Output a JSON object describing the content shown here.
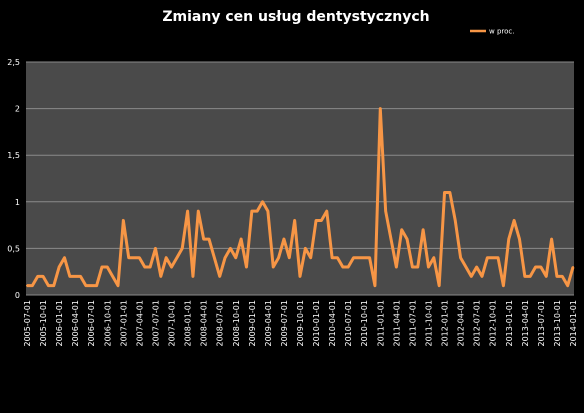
{
  "chart_data": {
    "type": "line",
    "title": "Zmiany cen usług dentystycznych",
    "xlabel": "",
    "ylabel": "",
    "ylim": [
      0,
      2.5
    ],
    "yticks": [
      "0",
      "0,5",
      "1",
      "1,5",
      "2",
      "2,5"
    ],
    "grid": "horizontal",
    "legend_position": "top-right",
    "colors": {
      "background": "#000000",
      "plot_area": "#4a4a4a",
      "gridline": "#8a8a8a",
      "series": "#f79646",
      "text": "#ffffff"
    },
    "x_tick_labels": [
      "2005-07-01",
      "2005-10-01",
      "2006-01-01",
      "2006-04-01",
      "2006-07-01",
      "2006-10-01",
      "2007-01-01",
      "2007-04-01",
      "2007-07-01",
      "2007-10-01",
      "2008-01-01",
      "2008-04-01",
      "2008-07-01",
      "2008-10-01",
      "2009-01-01",
      "2009-04-01",
      "2009-07-01",
      "2009-10-01",
      "2010-01-01",
      "2010-04-01",
      "2010-07-01",
      "2010-10-01",
      "2011-01-01",
      "2011-04-01",
      "2011-07-01",
      "2011-10-01",
      "2012-01-01",
      "2012-04-01",
      "2012-07-01",
      "2012-10-01",
      "2013-01-01",
      "2013-04-01",
      "2013-07-01",
      "2013-10-01",
      "2014-01-01"
    ],
    "series": [
      {
        "name": "w proc.",
        "values": [
          0.1,
          0.1,
          0.2,
          0.2,
          0.1,
          0.1,
          0.3,
          0.4,
          0.2,
          0.2,
          0.2,
          0.1,
          0.1,
          0.1,
          0.3,
          0.3,
          0.2,
          0.1,
          0.8,
          0.4,
          0.4,
          0.4,
          0.3,
          0.3,
          0.5,
          0.2,
          0.4,
          0.3,
          0.4,
          0.5,
          0.9,
          0.2,
          0.9,
          0.6,
          0.6,
          0.4,
          0.2,
          0.4,
          0.5,
          0.4,
          0.6,
          0.3,
          0.9,
          0.9,
          1.0,
          0.9,
          0.3,
          0.4,
          0.6,
          0.4,
          0.8,
          0.2,
          0.5,
          0.4,
          0.8,
          0.8,
          0.9,
          0.4,
          0.4,
          0.3,
          0.3,
          0.4,
          0.4,
          0.4,
          0.4,
          0.1,
          2.0,
          0.9,
          0.6,
          0.3,
          0.7,
          0.6,
          0.3,
          0.3,
          0.7,
          0.3,
          0.4,
          0.1,
          1.1,
          1.1,
          0.8,
          0.4,
          0.3,
          0.2,
          0.3,
          0.2,
          0.4,
          0.4,
          0.4,
          0.1,
          0.6,
          0.8,
          0.6,
          0.2,
          0.2,
          0.3,
          0.3,
          0.2,
          0.6,
          0.2,
          0.2,
          0.1,
          0.3
        ]
      }
    ]
  }
}
